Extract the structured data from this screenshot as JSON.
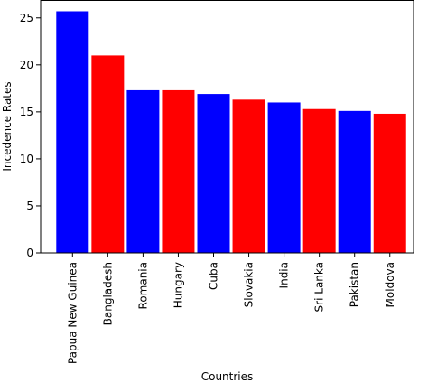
{
  "chart_data": {
    "type": "bar",
    "categories": [
      "Papua New Guinea",
      "Bangladesh",
      "Romania",
      "Hungary",
      "Cuba",
      "Slovakia",
      "India",
      "Sri Lanka",
      "Pakistan",
      "Moldova"
    ],
    "values": [
      25.7,
      21.0,
      17.3,
      17.3,
      16.9,
      16.3,
      16.0,
      15.3,
      15.1,
      14.8
    ],
    "bar_colors": [
      "#0000ff",
      "#ff0000",
      "#0000ff",
      "#ff0000",
      "#0000ff",
      "#ff0000",
      "#0000ff",
      "#ff0000",
      "#0000ff",
      "#ff0000"
    ],
    "xlabel": "Countries",
    "ylabel": "Incedence Rates",
    "ylim": [
      0,
      26.9
    ],
    "yticks": [
      0,
      5,
      10,
      15,
      20,
      25
    ],
    "grid": false
  }
}
